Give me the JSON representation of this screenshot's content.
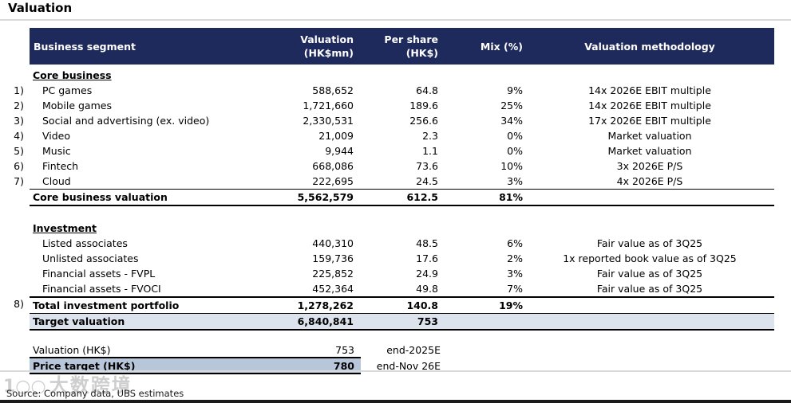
{
  "page_title": "Valuation",
  "colors": {
    "header_bg": "#1e2a5c",
    "header_text": "#ffffff",
    "target_row_highlight": "#dde3ed",
    "price_target_highlight": "#b8c6da",
    "rule_gray": "#d9d9d9"
  },
  "table": {
    "header": {
      "business_segment": "Business segment",
      "valuation_line1": "Valuation",
      "valuation_line2": "(HK$mn)",
      "per_share_line1": "Per share",
      "per_share_line2": "(HK$)",
      "mix": "Mix (%)",
      "methodology": "Valuation methodology"
    },
    "rows": [
      {
        "num": "",
        "segment": "Core business",
        "valuation": "",
        "per_share": "",
        "mix": "",
        "methodology": ""
      },
      {
        "num": "1)",
        "segment": "PC games",
        "valuation": "588,652",
        "per_share": "64.8",
        "mix": "9%",
        "methodology": "14x 2026E EBIT multiple"
      },
      {
        "num": "2)",
        "segment": "Mobile games",
        "valuation": "1,721,660",
        "per_share": "189.6",
        "mix": "25%",
        "methodology": "14x 2026E EBIT multiple"
      },
      {
        "num": "3)",
        "segment": "Social and advertising (ex. video)",
        "valuation": "2,330,531",
        "per_share": "256.6",
        "mix": "34%",
        "methodology": "17x 2026E EBIT multiple"
      },
      {
        "num": "4)",
        "segment": "Video",
        "valuation": "21,009",
        "per_share": "2.3",
        "mix": "0%",
        "methodology": "Market valuation"
      },
      {
        "num": "5)",
        "segment": "Music",
        "valuation": "9,944",
        "per_share": "1.1",
        "mix": "0%",
        "methodology": "Market valuation"
      },
      {
        "num": "6)",
        "segment": "Fintech",
        "valuation": "668,086",
        "per_share": "73.6",
        "mix": "10%",
        "methodology": "3x 2026E P/S"
      },
      {
        "num": "7)",
        "segment": "Cloud",
        "valuation": "222,695",
        "per_share": "24.5",
        "mix": "3%",
        "methodology": "4x 2026E P/S"
      },
      {
        "num": "",
        "segment": "Core business valuation",
        "valuation": "5,562,579",
        "per_share": "612.5",
        "mix": "81%",
        "methodology": ""
      },
      {
        "num": "",
        "segment": "Investment",
        "valuation": "",
        "per_share": "",
        "mix": "",
        "methodology": ""
      },
      {
        "num": "",
        "segment": "Listed associates",
        "valuation": "440,310",
        "per_share": "48.5",
        "mix": "6%",
        "methodology": "Fair value as of 3Q25"
      },
      {
        "num": "",
        "segment": "Unlisted associates",
        "valuation": "159,736",
        "per_share": "17.6",
        "mix": "2%",
        "methodology": "1x reported book value as of 3Q25"
      },
      {
        "num": "",
        "segment": "Financial assets - FVPL",
        "valuation": "225,852",
        "per_share": "24.9",
        "mix": "3%",
        "methodology": "Fair value as of 3Q25"
      },
      {
        "num": "",
        "segment": "Financial assets - FVOCI",
        "valuation": "452,364",
        "per_share": "49.8",
        "mix": "7%",
        "methodology": "Fair value as of 3Q25"
      },
      {
        "num": "8)",
        "segment": "Total investment portfolio",
        "valuation": "1,278,262",
        "per_share": "140.8",
        "mix": "19%",
        "methodology": ""
      },
      {
        "num": "",
        "segment": "Target valuation",
        "valuation": "6,840,841",
        "per_share": "753",
        "mix": "",
        "methodology": ""
      }
    ]
  },
  "summary": {
    "rows": [
      {
        "label": "Valuation (HK$)",
        "value": "753",
        "timing": "end-2025E"
      },
      {
        "label": "Price target (HK$)",
        "value": "780",
        "timing": "end-Nov 26E"
      }
    ]
  },
  "source_note": "Source: Company data, UBS estimates",
  "watermark": {
    "logo": "1○○",
    "text": "大数跨境"
  }
}
